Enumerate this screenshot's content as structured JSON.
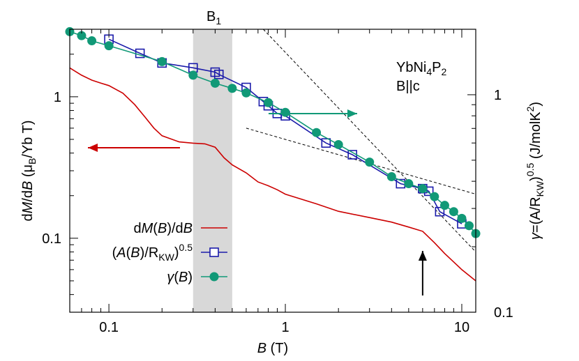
{
  "chart_data": {
    "type": "line",
    "xscale": "log",
    "yscale": "log",
    "xlabel_var": "B",
    "xlabel_unit": " (T)",
    "xlim": [
      0.06,
      12
    ],
    "ylim_left": [
      0.03,
      3
    ],
    "ylim_right": [
      0.1,
      2.0
    ],
    "x_ticks": [
      0.1,
      1,
      10
    ],
    "x_tick_labels": [
      "0.1",
      "1",
      "10"
    ],
    "y_left_ticks": [
      0.1,
      1
    ],
    "y_left_tick_labels": [
      "0.1",
      "1"
    ],
    "y_right_ticks": [
      0.1,
      1
    ],
    "y_right_tick_labels": [
      "0.1",
      "1"
    ],
    "ylabel_left": "dM/dB (μB/Yb T)",
    "ylabel_right": "γ=(A/RKW)0.5 (J/molK2)",
    "annotation_compound": "YbNi4P2",
    "annotation_field": "B||c",
    "shaded_band": {
      "label": "B1",
      "x_range": [
        0.3,
        0.5
      ]
    },
    "arrows": [
      {
        "name": "red-left-arrow",
        "axis": "left",
        "direction": "left",
        "color": "#cc0000"
      },
      {
        "name": "green-right-arrow",
        "axis": "right",
        "direction": "right",
        "color": "#119977"
      },
      {
        "name": "black-up-arrow",
        "direction": "up",
        "color": "#000000",
        "x": 6.0
      }
    ],
    "dashed_guides": [
      {
        "axis": "left",
        "points": [
          [
            0.75,
            3.0
          ],
          [
            12,
            0.08
          ]
        ]
      },
      {
        "axis": "left",
        "points": [
          [
            0.6,
            0.6
          ],
          [
            12,
            0.205
          ]
        ]
      }
    ],
    "legend_position": "bottom-left",
    "series": [
      {
        "name": "dM(B)/dB",
        "legend_label": "dM(B)/dB",
        "axis": "left",
        "color": "#cc0000",
        "style": "line",
        "x": [
          0.06,
          0.07,
          0.08,
          0.09,
          0.1,
          0.12,
          0.14,
          0.16,
          0.18,
          0.2,
          0.25,
          0.3,
          0.35,
          0.4,
          0.45,
          0.5,
          0.6,
          0.7,
          0.8,
          0.9,
          1.0,
          1.5,
          2.0,
          3.0,
          4.0,
          5.0,
          6.0,
          7.0,
          8.0,
          9.0,
          10.0,
          12.0
        ],
        "y": [
          1.6,
          1.42,
          1.31,
          1.25,
          1.2,
          1.06,
          0.88,
          0.72,
          0.6,
          0.53,
          0.48,
          0.47,
          0.465,
          0.44,
          0.37,
          0.33,
          0.29,
          0.25,
          0.235,
          0.22,
          0.205,
          0.175,
          0.155,
          0.14,
          0.13,
          0.12,
          0.112,
          0.093,
          0.078,
          0.068,
          0.06,
          0.05
        ]
      },
      {
        "name": "(A(B)/RKW)^0.5",
        "legend_label": "(A(B)/RKW)0.5",
        "axis": "right",
        "color": "#1a1aaa",
        "style": "open-square",
        "x": [
          0.1,
          0.15,
          0.2,
          0.3,
          0.4,
          0.42,
          0.6,
          0.75,
          0.8,
          0.9,
          1.0,
          1.7,
          2.4,
          4.5,
          6.0,
          6.5,
          7.5,
          10.0
        ],
        "y": [
          1.8,
          1.55,
          1.4,
          1.33,
          1.27,
          1.24,
          1.08,
          0.93,
          0.89,
          0.82,
          0.8,
          0.6,
          0.53,
          0.39,
          0.37,
          0.36,
          0.29,
          0.255
        ]
      },
      {
        "name": "γ(B)",
        "legend_label": "γ(B)",
        "axis": "right",
        "color": "#119977",
        "style": "filled-circle",
        "x": [
          0.06,
          0.07,
          0.08,
          0.1,
          0.2,
          0.3,
          0.4,
          0.5,
          0.6,
          0.8,
          1.0,
          1.5,
          2.0,
          3.0,
          4.0,
          5.0,
          6.0,
          7.0,
          8.0,
          9.0,
          10.0,
          11.0,
          12.0
        ],
        "y": [
          1.95,
          1.87,
          1.77,
          1.68,
          1.42,
          1.23,
          1.13,
          1.07,
          1.02,
          0.92,
          0.83,
          0.67,
          0.59,
          0.49,
          0.42,
          0.39,
          0.37,
          0.34,
          0.31,
          0.29,
          0.27,
          0.25,
          0.23
        ]
      }
    ]
  }
}
